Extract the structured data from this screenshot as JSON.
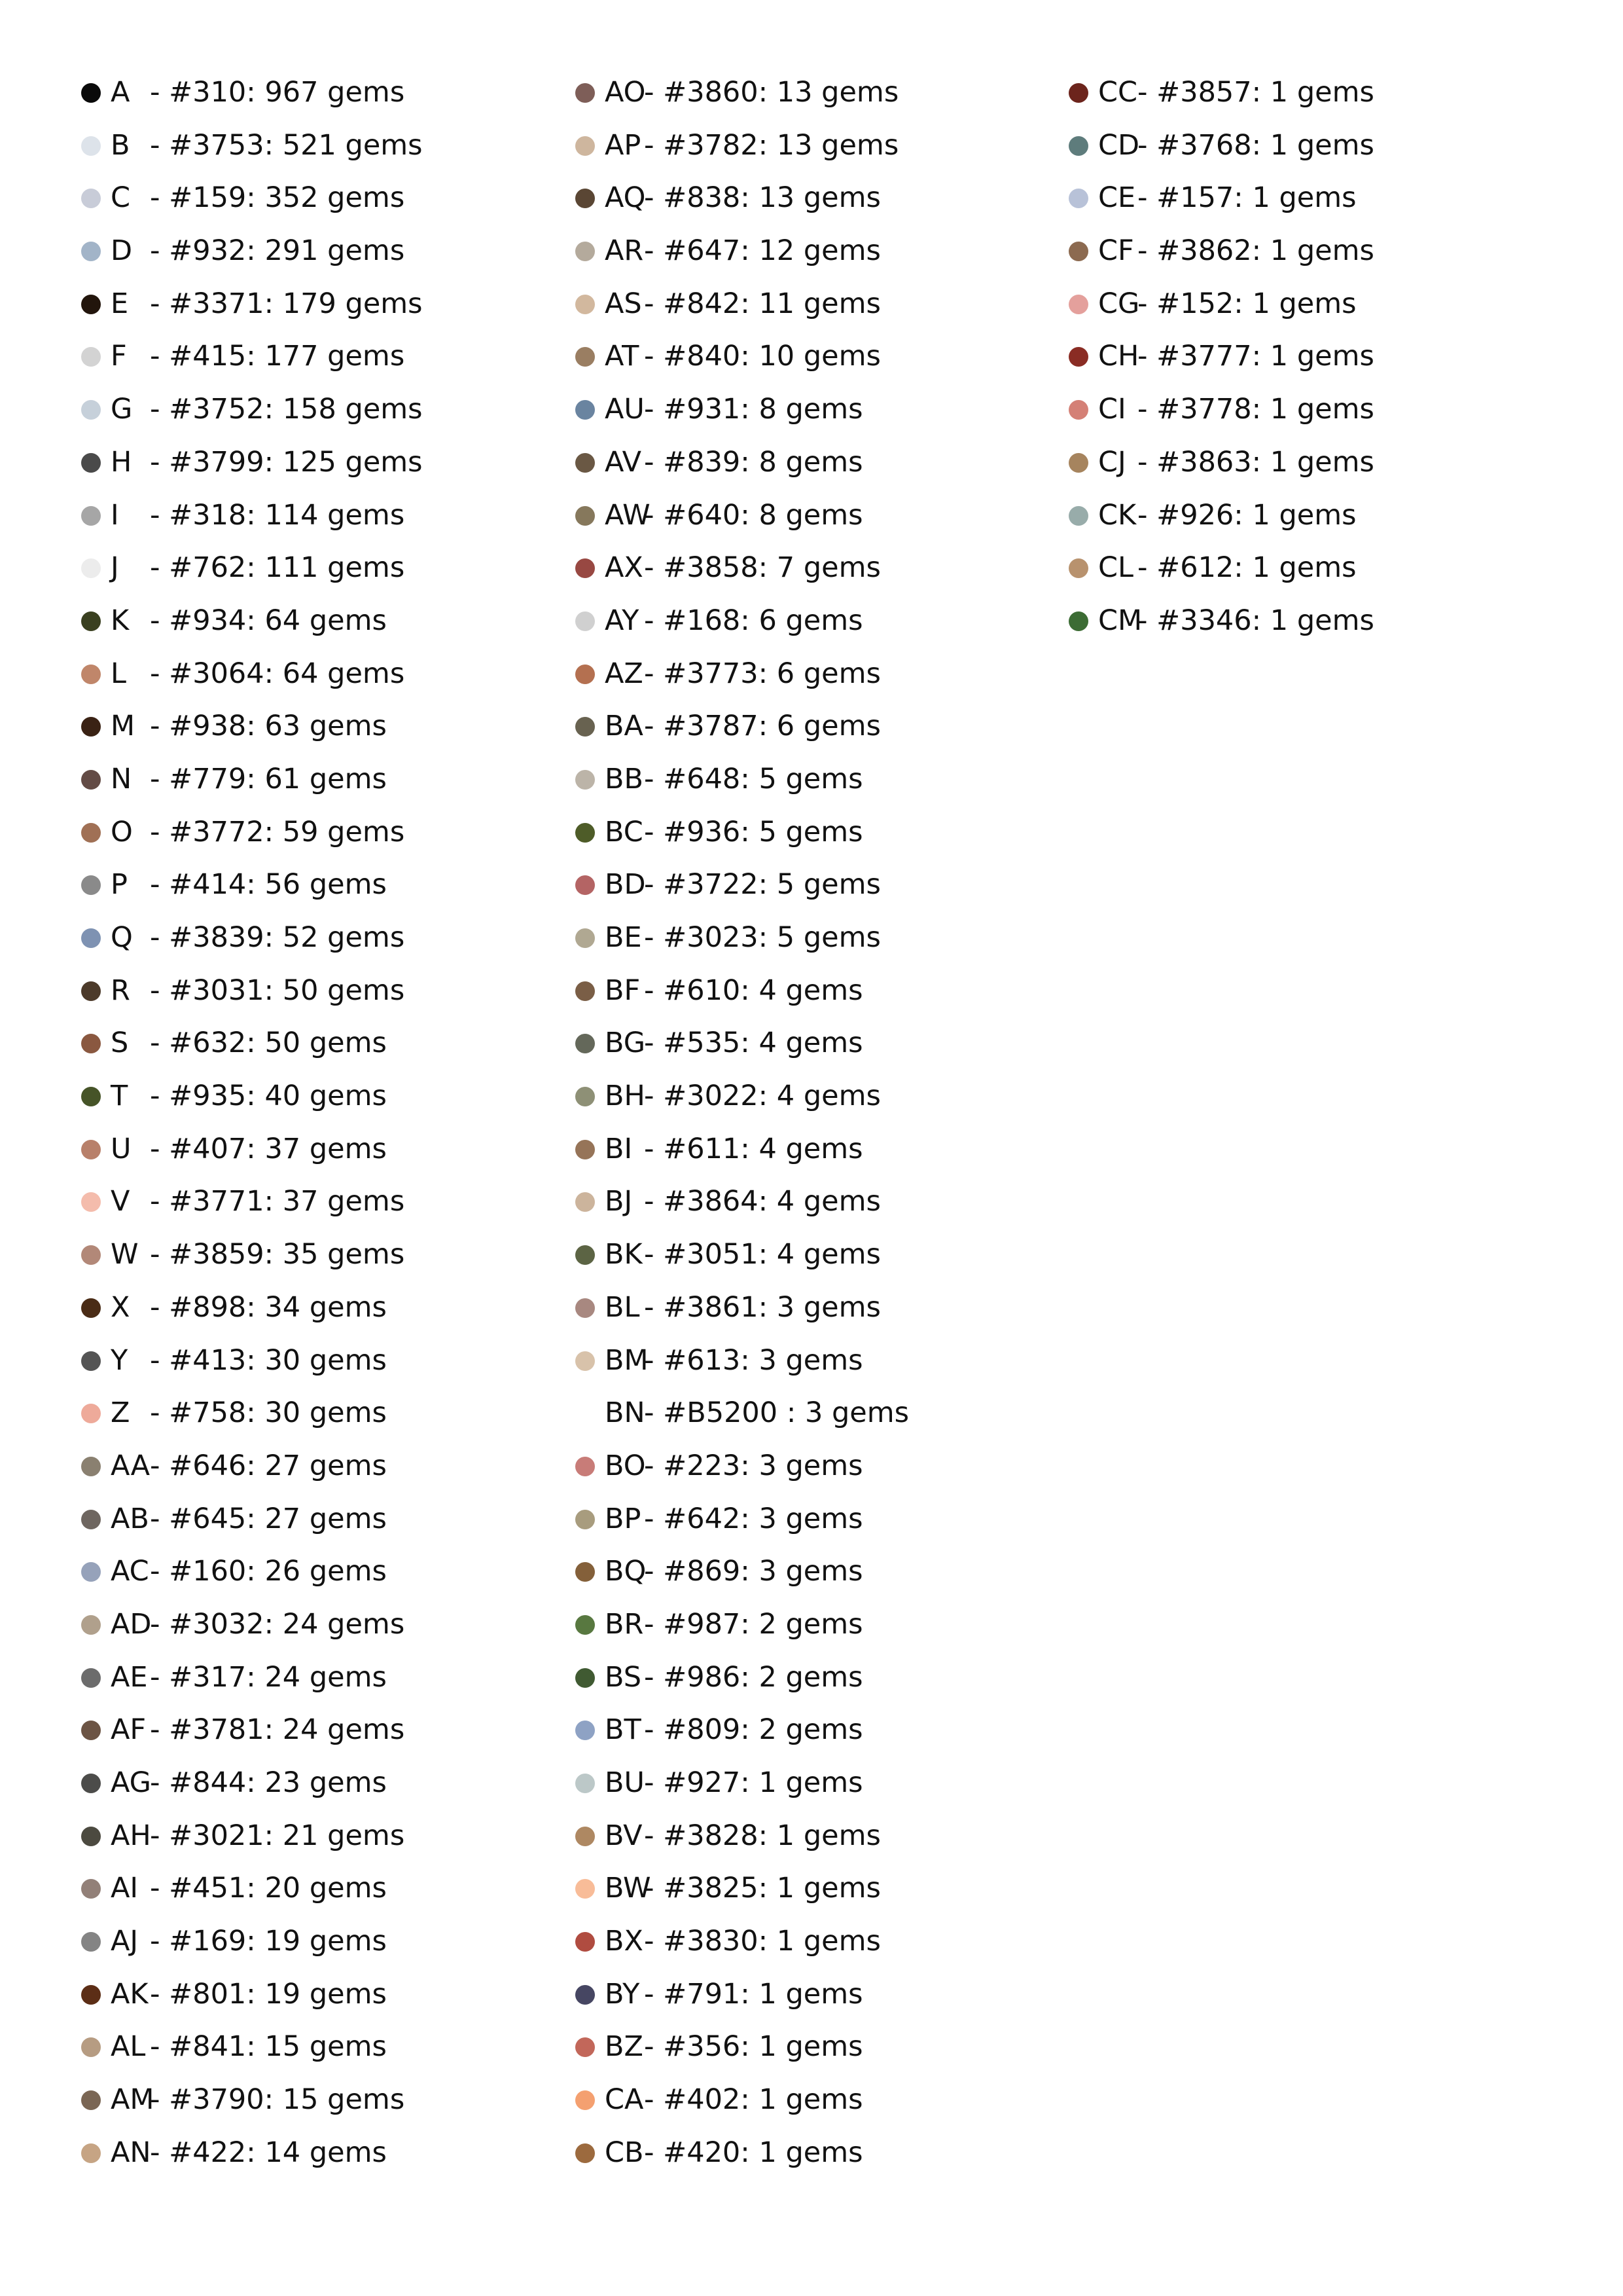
{
  "legend": {
    "columns": [
      [
        {
          "code": "A",
          "desc": " - #310: 967 gems",
          "color": "#0a0a0a"
        },
        {
          "code": "B",
          "desc": " - #3753: 521 gems",
          "color": "#dde3ea"
        },
        {
          "code": "C",
          "desc": " - #159: 352 gems",
          "color": "#c8ccd8"
        },
        {
          "code": "D",
          "desc": " - #932: 291 gems",
          "color": "#a2b4c8"
        },
        {
          "code": "E",
          "desc": " - #3371: 179 gems",
          "color": "#22150c"
        },
        {
          "code": "F",
          "desc": " - #415: 177 gems",
          "color": "#d3d3d3"
        },
        {
          "code": "G",
          "desc": " - #3752: 158 gems",
          "color": "#c6d0da"
        },
        {
          "code": "H",
          "desc": " - #3799: 125 gems",
          "color": "#4a4a4a"
        },
        {
          "code": "I",
          "desc": " - #318: 114 gems",
          "color": "#a6a6a6"
        },
        {
          "code": "J",
          "desc": " - #762: 111 gems",
          "color": "#ececec"
        },
        {
          "code": "K",
          "desc": " - #934: 64 gems",
          "color": "#3a4020"
        },
        {
          "code": "L",
          "desc": " - #3064: 64 gems",
          "color": "#c0866a"
        },
        {
          "code": "M",
          "desc": " - #938: 63 gems",
          "color": "#3a2214"
        },
        {
          "code": "N",
          "desc": " - #779: 61 gems",
          "color": "#634b45"
        },
        {
          "code": "O",
          "desc": " - #3772: 59 gems",
          "color": "#a07055"
        },
        {
          "code": "P",
          "desc": " - #414: 56 gems",
          "color": "#8a8a8a"
        },
        {
          "code": "Q",
          "desc": " - #3839: 52 gems",
          "color": "#7e92b2"
        },
        {
          "code": "R",
          "desc": " - #3031: 50 gems",
          "color": "#4c3a2a"
        },
        {
          "code": "S",
          "desc": " - #632: 50 gems",
          "color": "#8a5840"
        },
        {
          "code": "T",
          "desc": " - #935: 40 gems",
          "color": "#465428"
        },
        {
          "code": "U",
          "desc": " - #407: 37 gems",
          "color": "#b8806a"
        },
        {
          "code": "V",
          "desc": " - #3771: 37 gems",
          "color": "#f4bcac"
        },
        {
          "code": "W",
          "desc": " - #3859: 35 gems",
          "color": "#b28878"
        },
        {
          "code": "X",
          "desc": " - #898: 34 gems",
          "color": "#4a2c16"
        },
        {
          "code": "Y",
          "desc": " - #413: 30 gems",
          "color": "#545454"
        },
        {
          "code": "Z",
          "desc": " - #758: 30 gems",
          "color": "#eeaa9a"
        },
        {
          "code": "AA",
          "desc": "- #646: 27 gems",
          "color": "#8a8070"
        },
        {
          "code": "AB",
          "desc": "- #645: 27 gems",
          "color": "#6e6660"
        },
        {
          "code": "AC",
          "desc": "- #160: 26 gems",
          "color": "#96a2ba"
        },
        {
          "code": "AD",
          "desc": "- #3032: 24 gems",
          "color": "#b0a08c"
        },
        {
          "code": "AE",
          "desc": "- #317: 24 gems",
          "color": "#6c6c6c"
        },
        {
          "code": "AF",
          "desc": "- #3781: 24 gems",
          "color": "#6c5444"
        },
        {
          "code": "AG",
          "desc": "- #844: 23 gems",
          "color": "#4c4c4a"
        },
        {
          "code": "AH",
          "desc": "- #3021: 21 gems",
          "color": "#4c4a40"
        },
        {
          "code": "AI",
          "desc": " - #451: 20 gems",
          "color": "#928078"
        },
        {
          "code": "AJ",
          "desc": " - #169: 19 gems",
          "color": "#848484"
        },
        {
          "code": "AK",
          "desc": "- #801: 19 gems",
          "color": "#5c2e16"
        },
        {
          "code": "AL",
          "desc": "- #841: 15 gems",
          "color": "#b69c82"
        },
        {
          "code": "AM",
          "desc": "- #3790: 15 gems",
          "color": "#7a6654"
        },
        {
          "code": "AN",
          "desc": "- #422: 14 gems",
          "color": "#c6a484"
        }
      ],
      [
        {
          "code": "AO",
          "desc": "- #3860: 13 gems",
          "color": "#7e5e58"
        },
        {
          "code": "AP",
          "desc": "- #3782: 13 gems",
          "color": "#ceb69e"
        },
        {
          "code": "AQ",
          "desc": "- #838: 13 gems",
          "color": "#5a4634"
        },
        {
          "code": "AR",
          "desc": "- #647: 12 gems",
          "color": "#b4aa9c"
        },
        {
          "code": "AS",
          "desc": "- #842: 11 gems",
          "color": "#d2b89e"
        },
        {
          "code": "AT",
          "desc": "- #840: 10 gems",
          "color": "#9a7e62"
        },
        {
          "code": "AU",
          "desc": "- #931: 8 gems",
          "color": "#6a84a0"
        },
        {
          "code": "AV",
          "desc": "- #839: 8 gems",
          "color": "#6a5844"
        },
        {
          "code": "AW",
          "desc": "- #640: 8 gems",
          "color": "#86785c"
        },
        {
          "code": "AX",
          "desc": "- #3858: 7 gems",
          "color": "#984842"
        },
        {
          "code": "AY",
          "desc": "- #168: 6 gems",
          "color": "#d0d0d0"
        },
        {
          "code": "AZ",
          "desc": "- #3773: 6 gems",
          "color": "#b47050"
        },
        {
          "code": "BA",
          "desc": "- #3787: 6 gems",
          "color": "#686250"
        },
        {
          "code": "BB",
          "desc": "- #648: 5 gems",
          "color": "#bcb4a8"
        },
        {
          "code": "BC",
          "desc": "- #936: 5 gems",
          "color": "#4e5c28"
        },
        {
          "code": "BD",
          "desc": "- #3722: 5 gems",
          "color": "#b46464"
        },
        {
          "code": "BE",
          "desc": "- #3023: 5 gems",
          "color": "#b0a892"
        },
        {
          "code": "BF",
          "desc": " - #610: 4 gems",
          "color": "#7a5e46"
        },
        {
          "code": "BG",
          "desc": "- #535: 4 gems",
          "color": "#64685a"
        },
        {
          "code": "BH",
          "desc": "- #3022: 4 gems",
          "color": "#8e9076"
        },
        {
          "code": "BI",
          "desc": " - #611: 4 gems",
          "color": "#967458"
        },
        {
          "code": "BJ",
          "desc": " - #3864: 4 gems",
          "color": "#ccb49c"
        },
        {
          "code": "BK",
          "desc": "- #3051: 4 gems",
          "color": "#5c6444"
        },
        {
          "code": "BL",
          "desc": " - #3861: 3 gems",
          "color": "#a88880"
        },
        {
          "code": "BM",
          "desc": "- #613: 3 gems",
          "color": "#d8c2aa"
        },
        {
          "code": "BN",
          "desc": "- #B5200 : 3 gems",
          "color": ""
        },
        {
          "code": "BO",
          "desc": "- #223: 3 gems",
          "color": "#c87c78"
        },
        {
          "code": "BP",
          "desc": "- #642: 3 gems",
          "color": "#a89c7e"
        },
        {
          "code": "BQ",
          "desc": "- #869: 3 gems",
          "color": "#84603a"
        },
        {
          "code": "BR",
          "desc": "- #987: 2 gems",
          "color": "#587840"
        },
        {
          "code": "BS",
          "desc": "- #986: 2 gems",
          "color": "#405a32"
        },
        {
          "code": "BT",
          "desc": "- #809: 2 gems",
          "color": "#8ea2c4"
        },
        {
          "code": "BU",
          "desc": "- #927: 1 gems",
          "color": "#bcc8c8"
        },
        {
          "code": "BV",
          "desc": "- #3828: 1 gems",
          "color": "#ae8862"
        },
        {
          "code": "BW",
          "desc": "- #3825: 1 gems",
          "color": "#f8bc98"
        },
        {
          "code": "BX",
          "desc": "- #3830: 1 gems",
          "color": "#b04c40"
        },
        {
          "code": "BY",
          "desc": "- #791: 1 gems",
          "color": "#464662"
        },
        {
          "code": "BZ",
          "desc": "- #356: 1 gems",
          "color": "#c2675a"
        },
        {
          "code": "CA",
          "desc": "- #402: 1 gems",
          "color": "#f4a070"
        },
        {
          "code": "CB",
          "desc": "- #420: 1 gems",
          "color": "#9c6a3e"
        }
      ],
      [
        {
          "code": "CC",
          "desc": "- #3857: 1 gems",
          "color": "#6c241c"
        },
        {
          "code": "CD",
          "desc": "- #3768: 1 gems",
          "color": "#5e7c7c"
        },
        {
          "code": "CE",
          "desc": "- #157: 1 gems",
          "color": "#b8c2d8"
        },
        {
          "code": "CF",
          "desc": " - #3862: 1 gems",
          "color": "#8c6a50"
        },
        {
          "code": "CG",
          "desc": "- #152: 1 gems",
          "color": "#e4a09c"
        },
        {
          "code": "CH",
          "desc": "- #3777: 1 gems",
          "color": "#8a2c24"
        },
        {
          "code": "CI",
          "desc": " - #3778: 1 gems",
          "color": "#d48076"
        },
        {
          "code": "CJ",
          "desc": " - #3863: 1 gems",
          "color": "#a6845e"
        },
        {
          "code": "CK",
          "desc": "- #926: 1 gems",
          "color": "#98acaa"
        },
        {
          "code": "CL",
          "desc": " - #612: 1 gems",
          "color": "#b8926e"
        },
        {
          "code": "CM",
          "desc": "- #3346: 1 gems",
          "color": "#3c6c34"
        }
      ]
    ]
  }
}
